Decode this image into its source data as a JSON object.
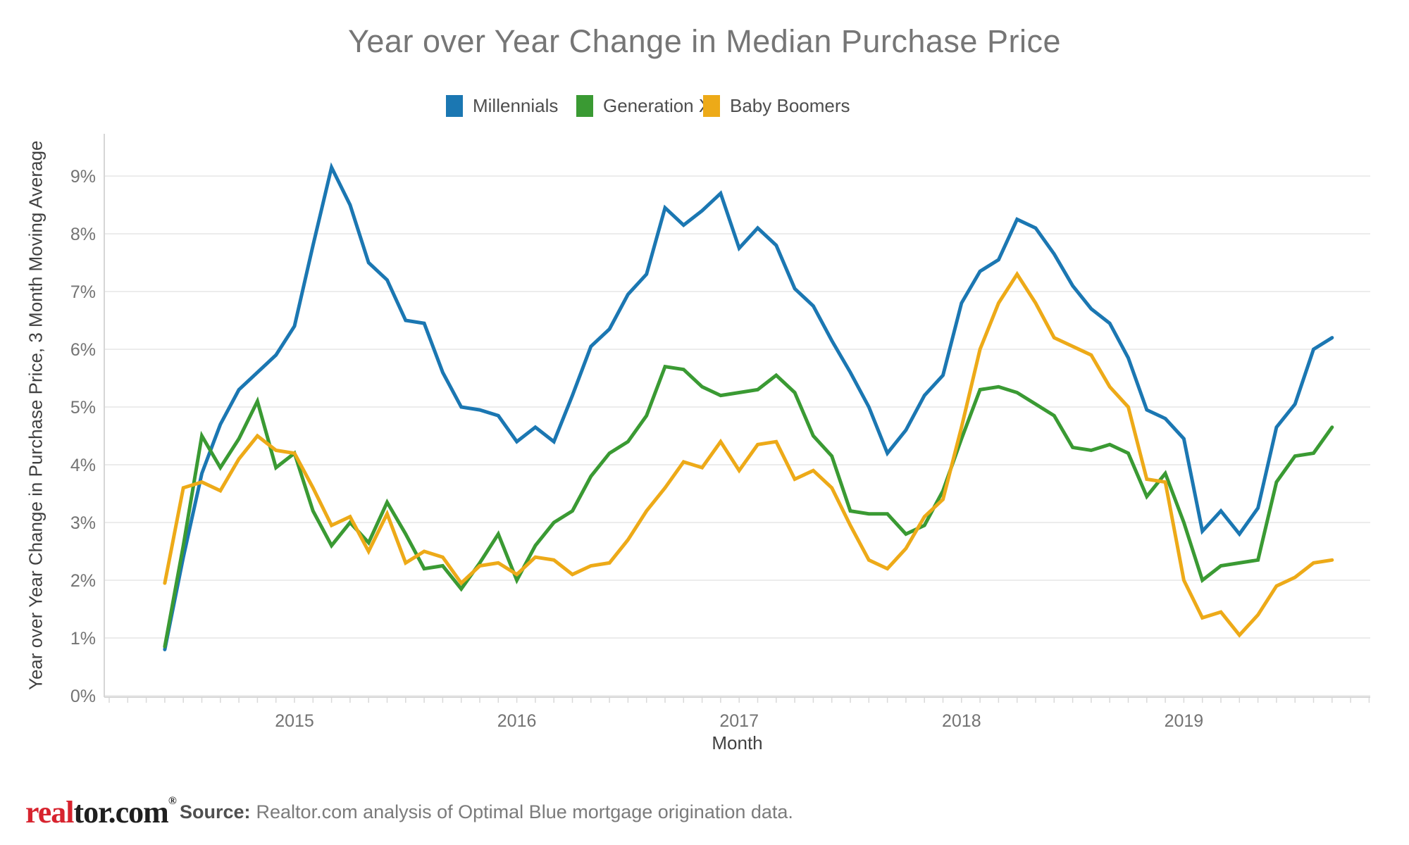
{
  "title": "Year over Year Change in Median Purchase Price",
  "legend": [
    {
      "label": "Millennials",
      "color": "#1b77b2"
    },
    {
      "label": "Generation X",
      "color": "#3a9a33"
    },
    {
      "label": "Baby Boomers",
      "color": "#edaa18"
    }
  ],
  "y_axis": {
    "title": "Year over Year Change in Purchase Price, 3 Month Moving Average",
    "ticks": [
      "0%",
      "1%",
      "2%",
      "3%",
      "4%",
      "5%",
      "6%",
      "7%",
      "8%",
      "9%"
    ]
  },
  "x_axis": {
    "title": "Month",
    "ticks": [
      "2015",
      "2016",
      "2017",
      "2018",
      "2019"
    ]
  },
  "footer": {
    "logo_real": "real",
    "logo_rest": "tor.com",
    "logo_reg": "®",
    "source_label": "Source:",
    "source_text": "Realtor.com analysis of Optimal Blue mortgage origination data."
  },
  "chart_data": {
    "type": "line",
    "title": "Year over Year Change in Median Purchase Price",
    "xlabel": "Month",
    "ylabel": "Year over Year Change in Purchase Price, 3 Month Moving Average",
    "ylim": [
      0,
      9.7
    ],
    "grid": true,
    "legend_position": "top",
    "x": [
      "2014-06",
      "2014-07",
      "2014-08",
      "2014-09",
      "2014-10",
      "2014-11",
      "2014-12",
      "2015-01",
      "2015-02",
      "2015-03",
      "2015-04",
      "2015-05",
      "2015-06",
      "2015-07",
      "2015-08",
      "2015-09",
      "2015-10",
      "2015-11",
      "2015-12",
      "2016-01",
      "2016-02",
      "2016-03",
      "2016-04",
      "2016-05",
      "2016-06",
      "2016-07",
      "2016-08",
      "2016-09",
      "2016-10",
      "2016-11",
      "2016-12",
      "2017-01",
      "2017-02",
      "2017-03",
      "2017-04",
      "2017-05",
      "2017-06",
      "2017-07",
      "2017-08",
      "2017-09",
      "2017-10",
      "2017-11",
      "2017-12",
      "2018-01",
      "2018-02",
      "2018-03",
      "2018-04",
      "2018-05",
      "2018-06",
      "2018-07",
      "2018-08",
      "2018-09",
      "2018-10",
      "2018-11",
      "2018-12",
      "2019-01",
      "2019-02",
      "2019-03",
      "2019-04",
      "2019-05",
      "2019-06",
      "2019-07",
      "2019-08",
      "2019-09"
    ],
    "series": [
      {
        "name": "Millennials",
        "color": "#1b77b2",
        "values": [
          0.8,
          2.4,
          3.85,
          4.7,
          5.3,
          5.6,
          5.9,
          6.4,
          7.8,
          9.15,
          8.5,
          7.5,
          7.2,
          6.5,
          6.45,
          5.6,
          5.0,
          4.95,
          4.85,
          4.4,
          4.65,
          4.4,
          5.2,
          6.05,
          6.35,
          6.95,
          7.3,
          8.45,
          8.15,
          8.4,
          8.7,
          7.75,
          8.1,
          7.8,
          7.05,
          6.75,
          6.15,
          5.6,
          5.0,
          4.2,
          4.6,
          5.2,
          5.55,
          6.8,
          7.35,
          7.55,
          8.25,
          8.1,
          7.65,
          7.1,
          6.7,
          6.45,
          5.85,
          4.95,
          4.8,
          4.45,
          2.85,
          3.2,
          2.8,
          3.25,
          4.65,
          5.05,
          6.0,
          6.2
        ]
      },
      {
        "name": "Generation X",
        "color": "#3a9a33",
        "values": [
          0.85,
          2.6,
          4.5,
          3.95,
          4.45,
          5.1,
          3.95,
          4.2,
          3.2,
          2.6,
          3.0,
          2.65,
          3.35,
          2.8,
          2.2,
          2.25,
          1.85,
          2.3,
          2.8,
          2.0,
          2.6,
          3.0,
          3.2,
          3.8,
          4.2,
          4.4,
          4.85,
          5.7,
          5.65,
          5.35,
          5.2,
          5.25,
          5.3,
          5.55,
          5.25,
          4.5,
          4.15,
          3.2,
          3.15,
          3.15,
          2.8,
          2.95,
          3.55,
          4.45,
          5.3,
          5.35,
          5.25,
          5.05,
          4.85,
          4.3,
          4.25,
          4.35,
          4.2,
          3.45,
          3.85,
          3.0,
          2.0,
          2.25,
          2.3,
          2.35,
          3.7,
          4.15,
          4.2,
          4.65
        ]
      },
      {
        "name": "Baby Boomers",
        "color": "#edaa18",
        "values": [
          1.95,
          3.6,
          3.7,
          3.55,
          4.1,
          4.5,
          4.25,
          4.2,
          3.6,
          2.95,
          3.1,
          2.5,
          3.15,
          2.3,
          2.5,
          2.4,
          1.95,
          2.25,
          2.3,
          2.1,
          2.4,
          2.35,
          2.1,
          2.25,
          2.3,
          2.7,
          3.2,
          3.6,
          4.05,
          3.95,
          4.4,
          3.9,
          4.35,
          4.4,
          3.75,
          3.9,
          3.6,
          2.95,
          2.35,
          2.2,
          2.55,
          3.1,
          3.4,
          4.65,
          6.0,
          6.8,
          7.3,
          6.8,
          6.2,
          6.05,
          5.9,
          5.35,
          5.0,
          3.75,
          3.7,
          2.0,
          1.35,
          1.45,
          1.05,
          1.4,
          1.9,
          2.05,
          2.3,
          2.35
        ]
      }
    ]
  }
}
